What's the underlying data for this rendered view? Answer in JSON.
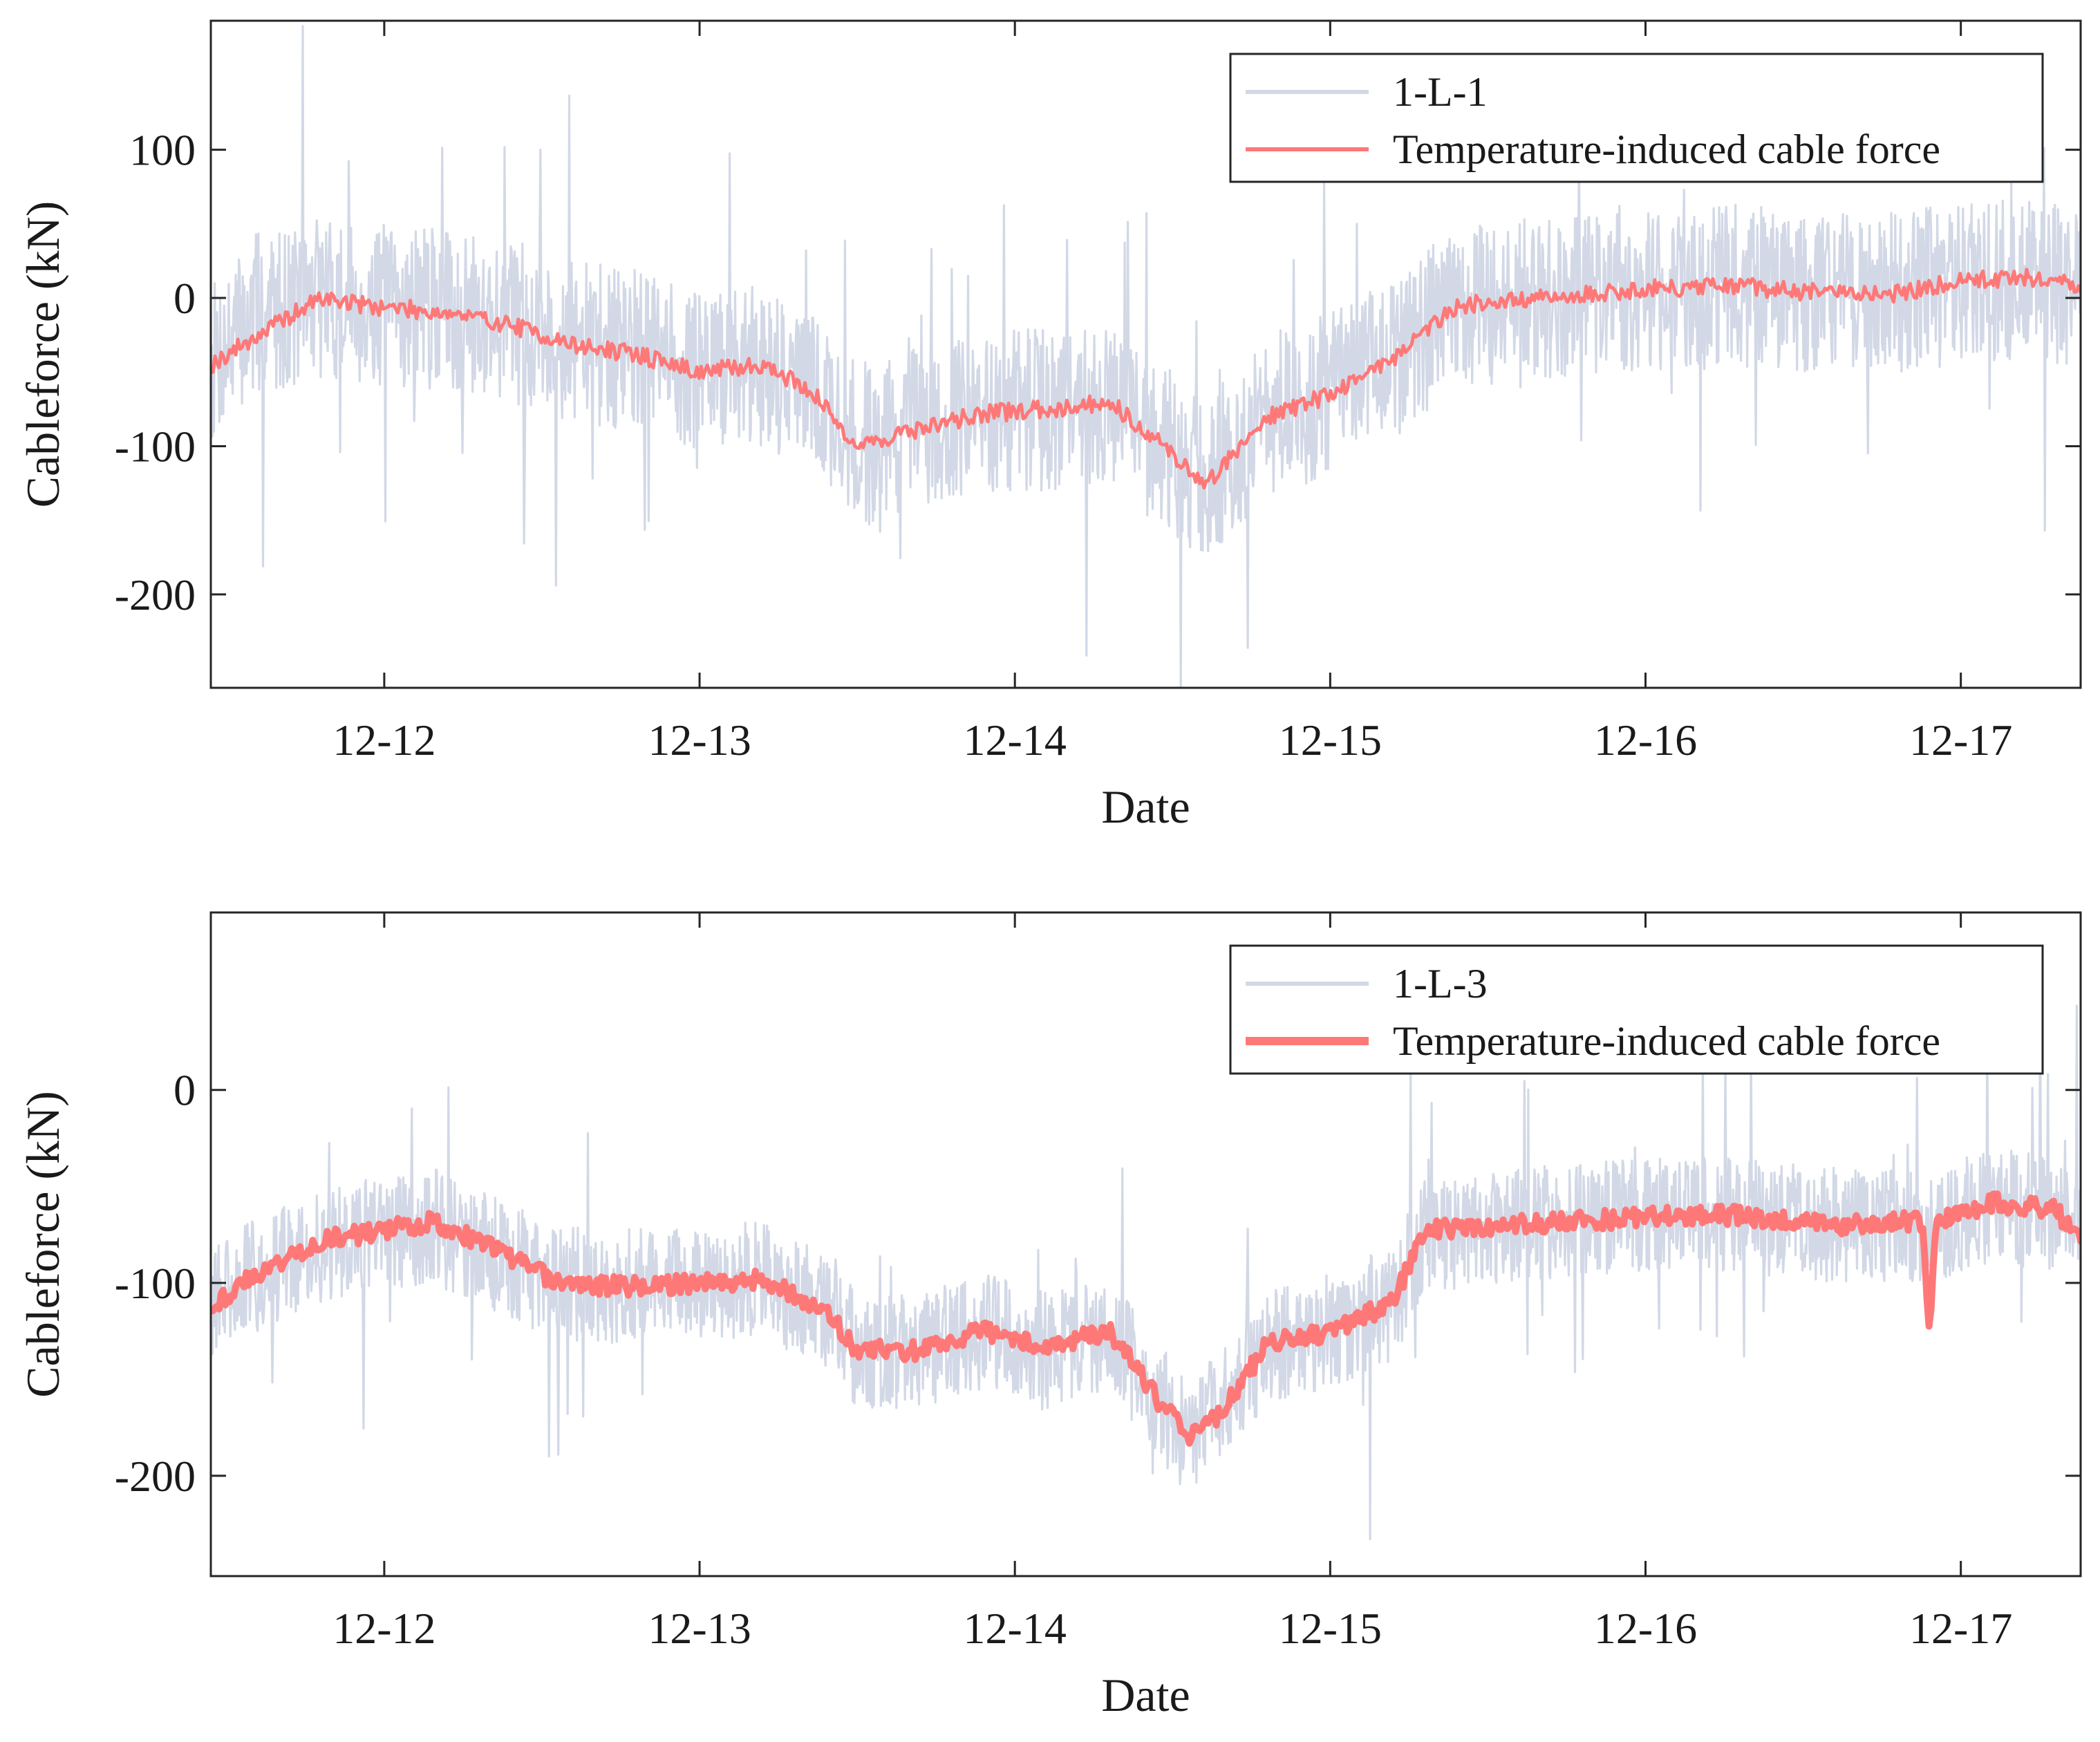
{
  "figure": {
    "background": "#ffffff",
    "axis_color": "#262626",
    "raw_color": "#d2d8e6",
    "fit_color": "#ff7878"
  },
  "chart_data": [
    {
      "type": "line",
      "xlabel": "Date",
      "ylabel": "Cableforce (kN)",
      "xlim": [
        11.45,
        17.38
      ],
      "ylim": [
        -263,
        187
      ],
      "xticks": [
        12,
        13,
        14,
        15,
        16,
        17
      ],
      "xtick_labels": [
        "12-12",
        "12-13",
        "12-14",
        "12-15",
        "12-16",
        "12-17"
      ],
      "yticks": [
        100,
        0,
        -100,
        -200
      ],
      "ytick_labels": [
        "100",
        "0",
        "-100",
        "-200"
      ],
      "legend_position": "top-right",
      "series": [
        {
          "name": "1-L-1",
          "role": "raw",
          "color": "#d2d8e6",
          "noise": {
            "spread": 55,
            "spike": 140,
            "seed": 7
          },
          "x": [
            11.45,
            11.6,
            11.8,
            11.95,
            12.2,
            12.4,
            12.6,
            12.8,
            13.0,
            13.2,
            13.35,
            13.5,
            13.7,
            13.9,
            14.1,
            14.3,
            14.5,
            14.6,
            14.8,
            15.0,
            15.2,
            15.4,
            15.7,
            16.0,
            16.3,
            16.5,
            16.8,
            17.0,
            17.2,
            17.38
          ],
          "values": [
            -45,
            -10,
            0,
            -5,
            -8,
            -15,
            -30,
            -35,
            -50,
            -45,
            -60,
            -100,
            -88,
            -78,
            -75,
            -72,
            -105,
            -125,
            -80,
            -65,
            -40,
            -5,
            0,
            5,
            8,
            5,
            3,
            10,
            12,
            8
          ]
        },
        {
          "name": "Temperature-induced cable force",
          "role": "fit",
          "color": "#ff7878",
          "noise": {
            "spread": 6,
            "spike": 0,
            "seed": 19
          },
          "x": [
            11.45,
            11.6,
            11.8,
            11.95,
            12.2,
            12.4,
            12.6,
            12.8,
            13.0,
            13.2,
            13.35,
            13.5,
            13.7,
            13.9,
            14.1,
            14.3,
            14.5,
            14.6,
            14.8,
            15.0,
            15.2,
            15.4,
            15.7,
            16.0,
            16.3,
            16.5,
            16.8,
            17.0,
            17.2,
            17.38
          ],
          "values": [
            -45,
            -25,
            0,
            -5,
            -10,
            -18,
            -32,
            -38,
            -50,
            -45,
            -62,
            -100,
            -88,
            -78,
            -75,
            -70,
            -105,
            -127,
            -80,
            -65,
            -40,
            -5,
            0,
            6,
            8,
            4,
            3,
            12,
            14,
            8
          ]
        }
      ]
    },
    {
      "type": "line",
      "xlabel": "Date",
      "ylabel": "Cableforce (kN)",
      "xlim": [
        11.45,
        17.38
      ],
      "ylim": [
        -252,
        92
      ],
      "xticks": [
        12,
        13,
        14,
        15,
        16,
        17
      ],
      "xtick_labels": [
        "12-12",
        "12-13",
        "12-14",
        "12-15",
        "12-16",
        "12-17"
      ],
      "yticks": [
        0,
        -100,
        -200
      ],
      "ytick_labels": [
        "0",
        "-100",
        "-200"
      ],
      "legend_position": "top-right",
      "series": [
        {
          "name": "1-L-3",
          "role": "raw",
          "color": "#d2d8e6",
          "noise": {
            "spread": 30,
            "spike": 95,
            "seed": 31
          },
          "x": [
            11.45,
            11.6,
            11.8,
            12.0,
            12.15,
            12.35,
            12.55,
            12.8,
            13.0,
            13.2,
            13.4,
            13.5,
            13.7,
            13.9,
            14.1,
            14.3,
            14.45,
            14.55,
            14.65,
            14.8,
            15.0,
            15.2,
            15.3,
            15.6,
            16.0,
            16.3,
            16.6,
            16.9,
            17.1,
            17.3,
            17.38
          ],
          "values": [
            -110,
            -95,
            -80,
            -75,
            -70,
            -85,
            -100,
            -102,
            -100,
            -98,
            -115,
            -135,
            -135,
            -125,
            -135,
            -125,
            -160,
            -180,
            -165,
            -135,
            -125,
            -110,
            -75,
            -70,
            -65,
            -65,
            -70,
            -70,
            -60,
            -65,
            -75
          ]
        },
        {
          "name": "Temperature-induced cable force",
          "role": "fit",
          "color": "#ff7878",
          "noise": {
            "spread": 5,
            "spike": 0,
            "seed": 43
          },
          "x": [
            11.45,
            11.6,
            11.8,
            12.0,
            12.15,
            12.35,
            12.55,
            12.8,
            13.0,
            13.2,
            13.4,
            13.5,
            13.7,
            13.9,
            14.1,
            14.3,
            14.45,
            14.55,
            14.65,
            14.8,
            15.0,
            15.2,
            15.3,
            15.6,
            16.0,
            16.3,
            16.6,
            16.88,
            16.9,
            16.92,
            17.1,
            17.3,
            17.38
          ],
          "values": [
            -112,
            -95,
            -78,
            -73,
            -68,
            -82,
            -100,
            -102,
            -100,
            -98,
            -115,
            -135,
            -135,
            -125,
            -133,
            -125,
            -160,
            -180,
            -168,
            -132,
            -125,
            -110,
            -72,
            -70,
            -66,
            -65,
            -70,
            -68,
            -130,
            -68,
            -58,
            -62,
            -78
          ]
        }
      ]
    }
  ]
}
